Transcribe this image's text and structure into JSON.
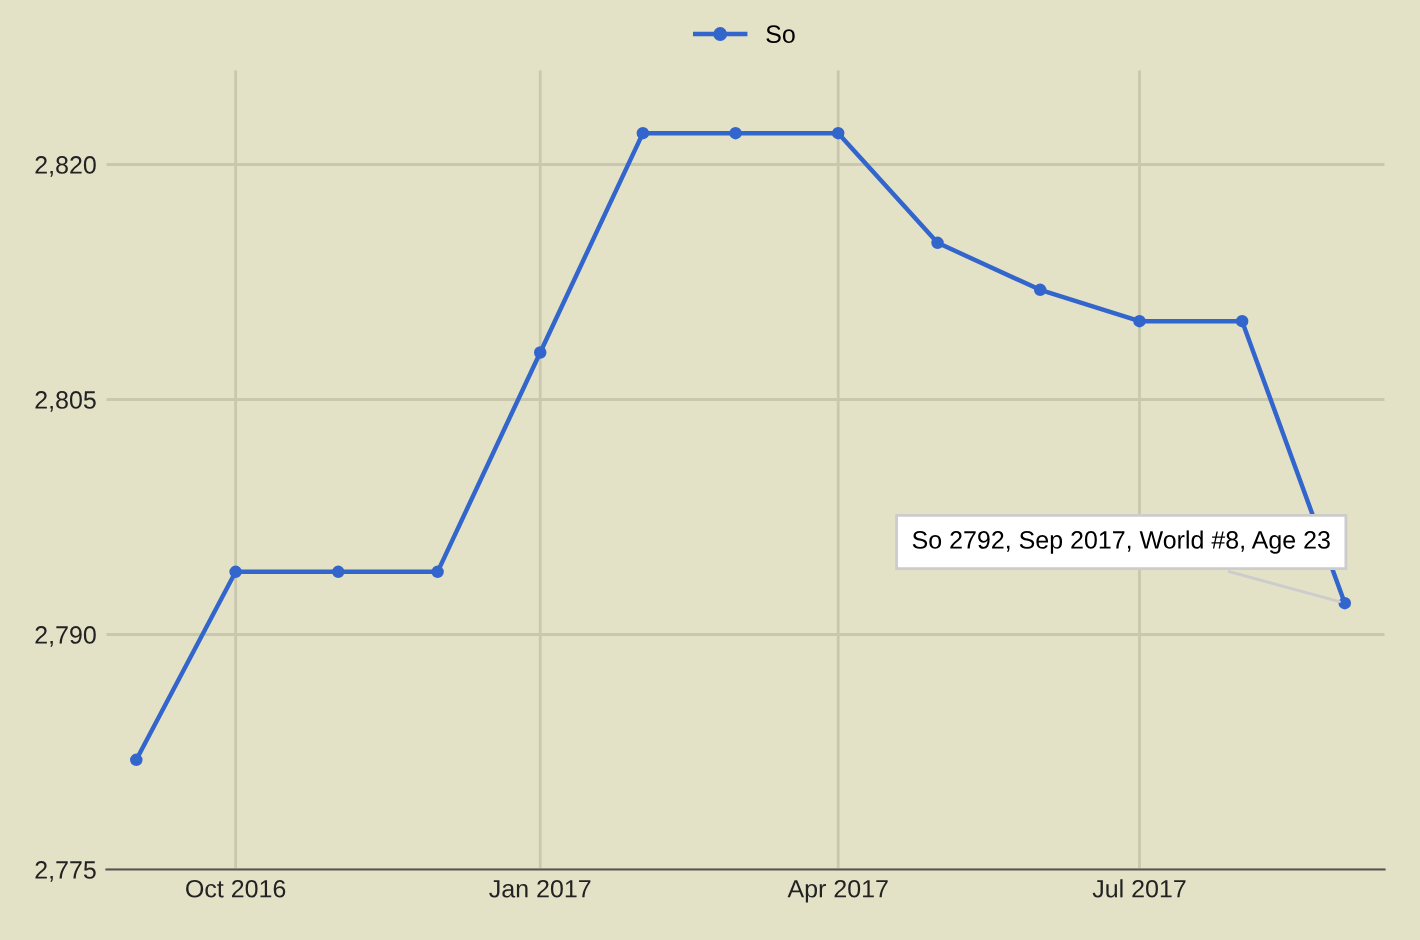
{
  "chart_data": {
    "type": "line",
    "x": [
      "2016-09",
      "2016-10",
      "2016-11",
      "2016-12",
      "2017-01",
      "2017-02",
      "2017-03",
      "2017-04",
      "2017-05",
      "2017-06",
      "2017-07",
      "2017-08",
      "2017-09"
    ],
    "series": [
      {
        "name": "So",
        "color": "#3366cc",
        "values": [
          2782,
          2794,
          2794,
          2794,
          2808,
          2822,
          2822,
          2822,
          2815,
          2812,
          2810,
          2810,
          2792
        ]
      }
    ],
    "xlim": [
      "2016-08-23",
      "2017-09-13"
    ],
    "xticks": [
      {
        "value": "2016-10",
        "label": "Oct 2016"
      },
      {
        "value": "2017-01",
        "label": "Jan 2017"
      },
      {
        "value": "2017-04",
        "label": "Apr 2017"
      },
      {
        "value": "2017-07",
        "label": "Jul 2017"
      }
    ],
    "ylim": [
      2775,
      2826
    ],
    "yticks": [
      {
        "value": 2775,
        "label": "2,775"
      },
      {
        "value": 2790,
        "label": "2,790"
      },
      {
        "value": 2805,
        "label": "2,805"
      },
      {
        "value": 2820,
        "label": "2,820"
      }
    ],
    "grid": true,
    "legend": "top",
    "marker": "circle",
    "line_style": "solid",
    "annotations": [
      {
        "text": "So 2792, Sep 2017, World #8, Age 23",
        "x": "2017-09",
        "y": 2792
      }
    ]
  }
}
